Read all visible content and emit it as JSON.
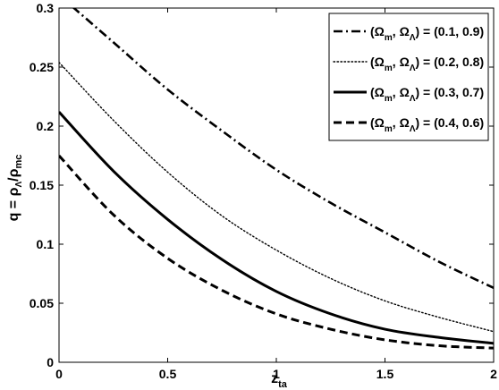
{
  "chart_data": {
    "type": "line",
    "xlabel": {
      "main": "z",
      "sub": "ta"
    },
    "ylabel": {
      "q": "q = ρ",
      "sub1": "Λ",
      "slash": "/ρ",
      "sub2": "mc"
    },
    "xlim": [
      0,
      2
    ],
    "ylim": [
      0,
      0.3
    ],
    "x_ticks": [
      "0",
      "0.5",
      "1",
      "1.5",
      "2"
    ],
    "y_ticks": [
      "0",
      "0.05",
      "0.1",
      "0.15",
      "0.2",
      "0.25",
      "0.3"
    ],
    "grid": false,
    "legend_position": "top-right",
    "series": [
      {
        "name": "(Ωm, ΩΛ) = (0.1, 0.9)",
        "legend": {
          "open": "(Ω",
          "m": "m",
          "mid": ", Ω",
          "l": "Λ",
          "close": ") = (0.1, 0.9)"
        },
        "style": "dashdot",
        "x": [
          0,
          0.25,
          0.5,
          0.75,
          1.0,
          1.25,
          1.5,
          1.75,
          2.0
        ],
        "y": [
          0.311,
          0.271,
          0.231,
          0.196,
          0.163,
          0.135,
          0.11,
          0.085,
          0.063
        ]
      },
      {
        "name": "(Ωm, ΩΛ) = (0.2, 0.8)",
        "legend": {
          "open": "(Ω",
          "m": "m",
          "mid": ", Ω",
          "l": "Λ",
          "close": ") = (0.2, 0.8)"
        },
        "style": "dotted",
        "x": [
          0,
          0.25,
          0.5,
          0.75,
          1.0,
          1.25,
          1.5,
          1.75,
          2.0
        ],
        "y": [
          0.254,
          0.205,
          0.161,
          0.124,
          0.095,
          0.071,
          0.052,
          0.038,
          0.026
        ]
      },
      {
        "name": "(Ωm, ΩΛ) = (0.3, 0.7)",
        "legend": {
          "open": "(Ω",
          "m": "m",
          "mid": ", Ω",
          "l": "Λ",
          "close": ") = (0.3, 0.7)"
        },
        "style": "solid",
        "x": [
          0,
          0.25,
          0.5,
          0.75,
          1.0,
          1.25,
          1.5,
          1.75,
          2.0
        ],
        "y": [
          0.212,
          0.162,
          0.121,
          0.087,
          0.06,
          0.041,
          0.028,
          0.021,
          0.016
        ]
      },
      {
        "name": "(Ωm, ΩΛ) = (0.4, 0.6)",
        "legend": {
          "open": "(Ω",
          "m": "m",
          "mid": ", Ω",
          "l": "Λ",
          "close": ") = (0.4, 0.6)"
        },
        "style": "dashed",
        "x": [
          0,
          0.25,
          0.5,
          0.75,
          1.0,
          1.25,
          1.5,
          1.75,
          2.0
        ],
        "y": [
          0.175,
          0.125,
          0.088,
          0.061,
          0.041,
          0.028,
          0.019,
          0.014,
          0.012
        ]
      }
    ]
  }
}
